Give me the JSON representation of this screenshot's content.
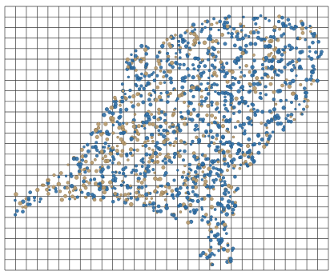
{
  "map": {
    "colors": {
      "background": "#ffffff",
      "grid": "#3a3a3a",
      "point_blue": "#2f6fa6",
      "point_blue_edge": "#1e4f7a",
      "point_tan": "#b89a6a",
      "point_tan_edge": "#7a6342"
    },
    "grid": {
      "shown": true,
      "x_lines": 31,
      "y_lines": 26
    },
    "point_series": [
      {
        "color": "point_blue"
      },
      {
        "color": "point_tan"
      }
    ]
  }
}
